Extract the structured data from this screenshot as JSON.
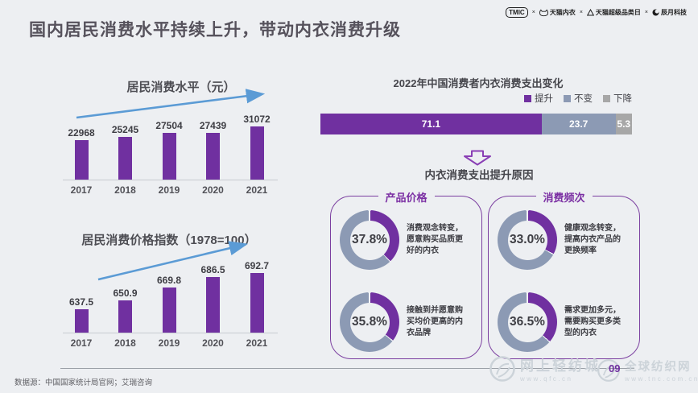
{
  "page": {
    "background": "#edeff2",
    "accent_purple": "#7030A0",
    "blue_gray": "#8C9AB4",
    "neutral_gray": "#A7A7A7",
    "arrow_blue": "#5B9BD5",
    "page_number": "09"
  },
  "header": {
    "title": "国内居民消费水平持续上升，带动内衣消费升级",
    "separator": "×",
    "logos": [
      {
        "name": "TMIC"
      },
      {
        "name": "天猫内衣"
      },
      {
        "name": "天猫超级品类日"
      },
      {
        "name": "辰月科技"
      }
    ]
  },
  "chart_data": [
    {
      "type": "bar",
      "title": "居民消费水平（元）",
      "categories": [
        "2017",
        "2018",
        "2019",
        "2020",
        "2021"
      ],
      "values": [
        22968,
        25245,
        27504,
        27439,
        31072
      ],
      "ylim": [
        0,
        32000
      ],
      "bar_color": "#7030A0",
      "annotation": "upward-trend-arrow"
    },
    {
      "type": "bar",
      "title": "居民消费价格指数（1978=100）",
      "categories": [
        "2017",
        "2018",
        "2019",
        "2020",
        "2021"
      ],
      "values": [
        637.5,
        650.9,
        669.8,
        686.5,
        692.7
      ],
      "ylim": [
        600,
        700
      ],
      "bar_color": "#7030A0",
      "annotation": "upward-trend-arrow"
    },
    {
      "type": "bar",
      "subtype": "horizontal-stacked",
      "title": "2022年中国消费者内衣消费支出变化",
      "legend_position": "top-right",
      "series": [
        {
          "name": "提升",
          "value": 71.1,
          "color": "#7030A0"
        },
        {
          "name": "不变",
          "value": 23.7,
          "color": "#8C9AB4"
        },
        {
          "name": "下降",
          "value": 5.3,
          "color": "#A7A7A7"
        }
      ]
    },
    {
      "type": "pie",
      "subtype": "donut",
      "group": "产品价格",
      "ring_colors": {
        "highlight": "#7030A0",
        "rest": "#8C9AB4"
      },
      "items": [
        {
          "percent": 37.8,
          "label": "消费观念转变，愿意购买品质更好的内衣"
        },
        {
          "percent": 35.8,
          "label": "接触到并愿意购买均价更高的内衣品牌"
        }
      ]
    },
    {
      "type": "pie",
      "subtype": "donut",
      "group": "消费频次",
      "ring_colors": {
        "highlight": "#7030A0",
        "rest": "#8C9AB4"
      },
      "items": [
        {
          "percent": 33.0,
          "label": "健康观念转变，提高内衣产品的更换频率"
        },
        {
          "percent": 36.5,
          "label": "需求更加多元，需要购买更多类型的内衣"
        }
      ]
    }
  ],
  "flow": {
    "title": "内衣消费支出提升原因"
  },
  "footer": {
    "source": "数据源：中国国家统计局官网；艾瑞咨询",
    "watermarks": [
      {
        "name": "网上轻纺城",
        "url": "www.qfc.cn"
      },
      {
        "name": "全球纺织网",
        "url": "www.tnc.com.cn"
      }
    ]
  }
}
